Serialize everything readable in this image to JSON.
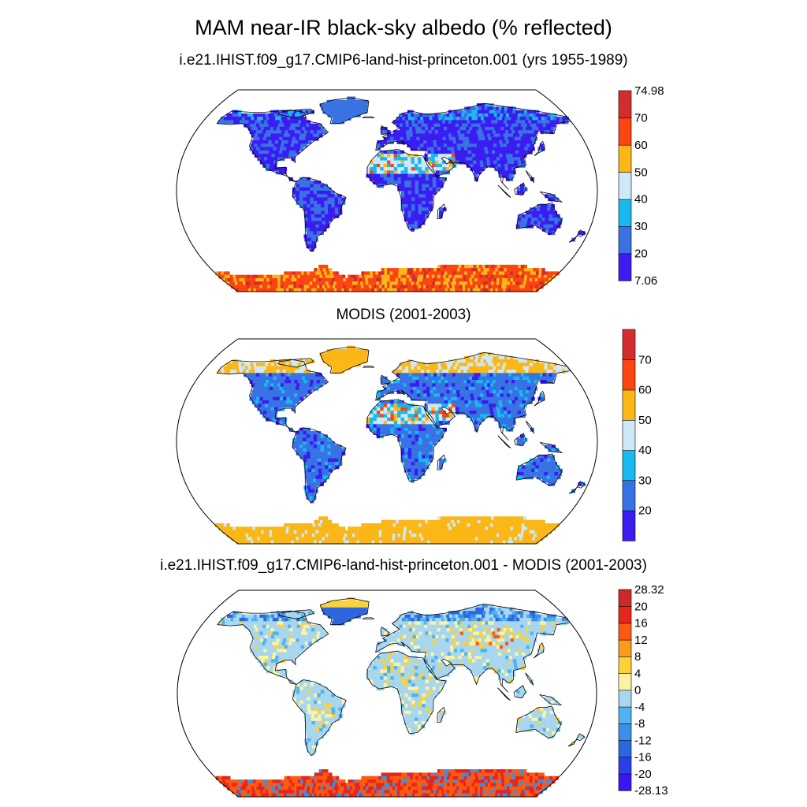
{
  "title": "MAM near-IR black-sky albedo (% reflected)",
  "panels": [
    {
      "title": "i.e21.IHIST.f09_g17.CMIP6-land-hist-princeton.001 (yrs 1955-1989)",
      "colorbar": {
        "colors": [
          "#3b1cf2",
          "#3872e3",
          "#1ab8f0",
          "#cde8f6",
          "#fbb717",
          "#fb4513",
          "#d32d2d"
        ],
        "labels": [
          "7.06",
          "20",
          "30",
          "40",
          "50",
          "60",
          "70",
          "74.98"
        ]
      }
    },
    {
      "title": "MODIS (2001-2003)",
      "colorbar": {
        "colors": [
          "#3b1cf2",
          "#3872e3",
          "#1ab8f0",
          "#cde8f6",
          "#fbb717",
          "#fb4513",
          "#d32d2d"
        ],
        "labels": [
          "",
          "20",
          "30",
          "40",
          "50",
          "60",
          "70",
          ""
        ]
      }
    },
    {
      "title": "i.e21.IHIST.f09_g17.CMIP6-land-hist-princeton.001 - MODIS (2001-2003)",
      "colorbar": {
        "colors": [
          "#3a16f2",
          "#2a3fe6",
          "#2d67e0",
          "#3b8fe6",
          "#4fb3ee",
          "#a7d6ee",
          "#fbf2a4",
          "#fbd23a",
          "#fb9a1b",
          "#fb5a13",
          "#e8251b",
          "#cc2a2a"
        ],
        "labels": [
          "-28.13",
          "-20",
          "-16",
          "-12",
          "-8",
          "-4",
          "0",
          "4",
          "8",
          "12",
          "16",
          "20",
          "28.32"
        ]
      }
    }
  ]
}
